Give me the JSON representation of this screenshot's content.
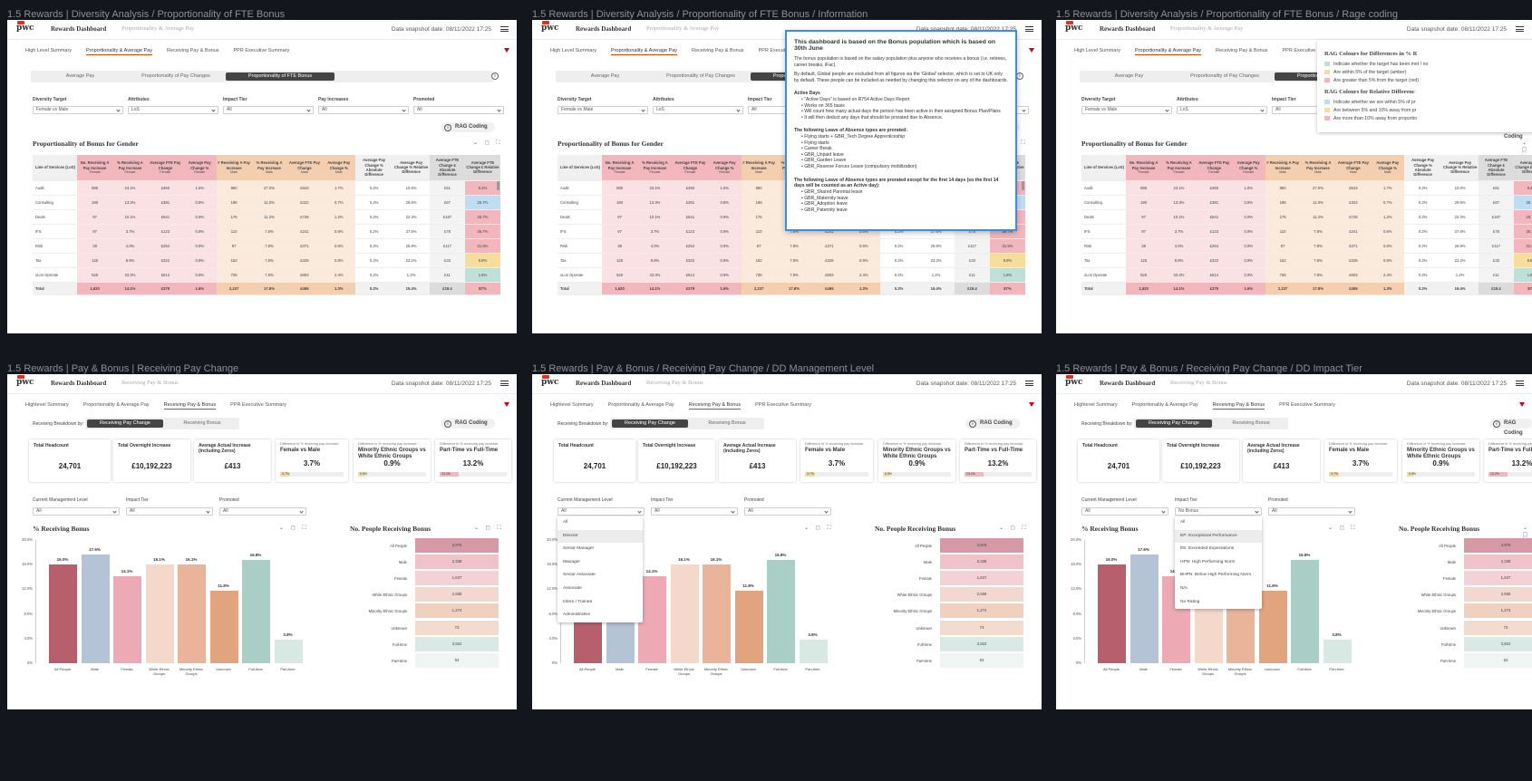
{
  "frames": {
    "f1": "1.5 Rewards | Diversity Analysis / Proportionality of FTE Bonus",
    "f2": "1.5 Rewards | Diversity Analysis / Proportionality of FTE Bonus / Information",
    "f3": "1.5 Rewards | Diversity Analysis / Proportionality of FTE Bonus / Rage coding",
    "f4": "1.5 Rewards | Pay & Bonus | Receiving Pay Change",
    "f5": "1.5 Rewards | Pay & Bonus / Receiving Pay Change / DD Management Level",
    "f6": "1.5 Rewards | Pay & Bonus / Receiving Pay Change / DD Impact Tier"
  },
  "header": {
    "logo": "pwc",
    "app": "Rewards Dashboard",
    "page_prop": "Proportionality & Average Pay",
    "page_recv": "Receiving Pay & Bonus",
    "snapshot": "Data snapshot date: 08/11/2022 17:25"
  },
  "nav_prop": [
    "High Level Summary",
    "Proportionality & Average Pay",
    "Receiving Pay & Bonus",
    "PPR Executive Summary"
  ],
  "nav_recv": [
    "Highlevel Summary",
    "Proportionality & Average Pay",
    "Receiving Pay & Bonus",
    "PPR Executive Summary"
  ],
  "subtabs": [
    "Average Pay",
    "Proportionality of Pay Changes",
    "Proportionality of FTE Bonus"
  ],
  "filters": {
    "diversity": {
      "label": "Diversity Target",
      "value": "Female vs Male"
    },
    "attributes": {
      "label": "Attributes",
      "value": "LoS"
    },
    "impact": {
      "label": "Impact Tier",
      "value": "All"
    },
    "payinc": {
      "label": "Pay Increases",
      "value": "All"
    },
    "promoted": {
      "label": "Promoted",
      "value": "All"
    }
  },
  "rag_label": "RAG Coding",
  "prop_title": "Proportionality of Bonus for Gender",
  "table": {
    "headers": [
      "Line of Services (LoS)",
      "No. Receiving A Pay Increase",
      "% Receiving A Pay Increase",
      "Average FTE Pay Change",
      "Average Pay Change %",
      "# Receiving A Pay Increase",
      "% Receiving A Pay Increase",
      "Average FTE Pay Change",
      "Average Pay Change %",
      "Average Pay Change % Absolute Difference",
      "Average Pay Change % Relative Difference",
      "Average FTE Change £ Absolute Difference",
      "Average FTE Change £ Relative Difference"
    ],
    "subs": [
      "",
      "Female",
      "Female",
      "Female",
      "Female",
      "Male",
      "Male",
      "Male",
      "Male",
      "",
      "",
      "",
      ""
    ],
    "rows": [
      [
        "Audit",
        "595",
        "23.1%",
        "£460",
        "1.5%",
        "860",
        "27.0%",
        "£543",
        "1.7%",
        "0.2%",
        "10.6%",
        "£51",
        "9.4%"
      ],
      [
        "Consulting",
        "190",
        "13.3%",
        "£381",
        "0.8%",
        "198",
        "11.0%",
        "£322",
        "0.7%",
        "0.2%",
        "29.6%",
        "£67",
        "25.7%"
      ],
      [
        "Deals",
        "97",
        "10.1%",
        "£541",
        "0.9%",
        "176",
        "11.2%",
        "£728",
        "1.2%",
        "0.2%",
        "22.3%",
        "£187",
        "25.7%"
      ],
      [
        "IFS",
        "97",
        "3.7%",
        "£123",
        "0.9%",
        "110",
        "7.8%",
        "£241",
        "0.6%",
        "0.2%",
        "37.6%",
        "£78",
        "36.7%"
      ],
      [
        "Risk",
        "38",
        "4.0%",
        "£254",
        "0.9%",
        "87",
        "7.8%",
        "£371",
        "0.6%",
        "0.2%",
        "26.8%",
        "£117",
        "31.5%"
      ],
      [
        "Tax",
        "125",
        "8.9%",
        "£322",
        "0.9%",
        "152",
        "7.8%",
        "£326",
        "0.8%",
        "0.2%",
        "23.2%",
        "£33",
        "9.8%"
      ],
      [
        "xLos Operate",
        "526",
        "33.3%",
        "£614",
        "0.9%",
        "736",
        "7.8%",
        "£603",
        "2.4%",
        "0.2%",
        "1.2%",
        "£11",
        "1.8%"
      ]
    ],
    "total": [
      "Total",
      "1,620",
      "14.1%",
      "£379",
      "1.6%",
      "2,237",
      "17.8%",
      "£465",
      "1.3%",
      "0.2%",
      "19.4%",
      "£19.4",
      "87%"
    ],
    "rag_colors": [
      "#f1b7bd",
      "#bfdcf3",
      "#f1b7bd",
      "#f1b7bd",
      "#f1b7bd",
      "#f6dd9b",
      "#bfe0d7"
    ]
  },
  "info": {
    "title": "This dashboard is based on the Bonus population which is based on 30th June",
    "p1": "The bonus population is based on the salary population plus anyone who receives a bonus (i.e. retirees, career breaks, iFac).",
    "p2": "By default, Global people are excluded from all figures via the 'Global' selector, which is set to UK only by default. These people can be included as needed by changing this selector on any of the dashboards.",
    "ad_title": "Active Days",
    "ad": [
      "\"Active Days\" is based on R754 Active Days Report",
      "Works on 365 basis",
      "Will count how many actual days the person has been active in their assigned Bonus Plan/Plans",
      "It will then deduct any days that should be prorated due to Absence."
    ],
    "la_title": "The following Leave of Absence types are prorated:",
    "la": [
      "Flying starts + GBR_Tech Degree Apprenticeship",
      "Flying starts",
      "Career Break",
      "GBR_Unpaid leave",
      "GBR_Garden Leave",
      "GBR_Reserve Forces Leave (compulsory mobilization)"
    ],
    "lb_title": "The following Leave of Absence types are prorated except for the first 14 days (so the first 14 days will be counted as an Active day):",
    "lb": [
      "GBR_Shared Parental leave",
      "GBR_Maternity leave",
      "GBR_Adoption leave",
      "GBR_Paternity leave"
    ]
  },
  "rag_panel": {
    "t1": "RAG Colours for Differences in % R",
    "l1": [
      "Indicate whether the target has been met / no",
      "Are within 5% of the target (amber)",
      "Are greater than 5% from the target (red)"
    ],
    "t2": "RAG Colours for Relative Differenc",
    "l2": [
      "Indicate whether we are within 5% of pr",
      "Are between 5% and 10% away from pr",
      "Are more than 10% away from proportio"
    ],
    "colors1": [
      "#bfe0d7",
      "#f6dd9b",
      "#f1b7bd"
    ],
    "colors2": [
      "#bfdcf3",
      "#f6dd9b",
      "#f1b7bd"
    ]
  },
  "recv": {
    "breakdown_label": "Receiving Breakdown by:",
    "toggle": [
      "Receiving Pay Change",
      "Receiving Bonus"
    ],
    "kpi": [
      {
        "label": "Total Headcount",
        "value": "24,701"
      },
      {
        "label": "Total Overnight Increase",
        "value": "£10,192,223"
      },
      {
        "label": "Average Actual Increase (including Zeros)",
        "value": "£413"
      }
    ],
    "kpi2": [
      {
        "small": "Difference in % receiving pay increase",
        "label": "Female vs Male",
        "value": "3.7%",
        "bar": "3.7%",
        "color": "#f6dd9b",
        "fill": 0.16
      },
      {
        "small": "Difference in % receiving pay increase",
        "label": "Minority Ethnic Groups vs White Ethnic Groups",
        "value": "0.9%",
        "bar": "0.9%",
        "color": "#f6dd9b",
        "fill": 0.1
      },
      {
        "small": "Difference in % receiving pay increase",
        "label": "Part-Time vs Full-Time",
        "value": "13.2%",
        "bar": "13.2%",
        "color": "#f1b7bd",
        "fill": 0.28
      }
    ],
    "kpi2_alt": [
      {
        "label": "Female vs Male",
        "value": "3.7%"
      },
      {
        "label": "Minority Ethnic Groups vs White Ethnic Groups",
        "value": "0.9%"
      },
      {
        "label": "Part-Time vs Full-Time",
        "value": "13.2%"
      }
    ],
    "f_mgmt": {
      "label": "Current Management Level",
      "value": "All"
    },
    "f_tier": {
      "label": "Impact Tier",
      "value": "All",
      "value_nb": "No Bonus"
    },
    "f_prom": {
      "label": "Promoted",
      "value": "All"
    },
    "bar_title": "% Receiving Bonus",
    "hbar_title": "No. People Receiving Bonus",
    "mgmt_options": [
      "All",
      "Director",
      "Senior Manager",
      "Manager",
      "Senior Associate",
      "Associate",
      "Intern / Trainee",
      "Administrative"
    ],
    "tier_options": [
      "All",
      "EP: Exceptional Performance",
      "EE: Exceeded Expectations",
      "HPN: High Performing Norm",
      "BHPN: Below High Performing Norm",
      "N/A",
      "No Rating"
    ]
  },
  "chart_data": [
    {
      "type": "bar",
      "title": "% Receiving Bonus",
      "categories": [
        "All People",
        "Male",
        "Female",
        "White Ethnic Groups",
        "Minority Ethnic Groups",
        "Unknown",
        "Full-time",
        "Part-time"
      ],
      "values": [
        16.0,
        17.6,
        14.1,
        16.1,
        16.1,
        11.8,
        16.8,
        3.8
      ],
      "labels": [
        "16.0%",
        "17.6%",
        "14.1%",
        "16.1%",
        "16.1%",
        "11.8%",
        "16.8%",
        "3.8%"
      ],
      "colors": [
        "#b85f6e",
        "#b5c3d6",
        "#eeaab4",
        "#f4d8c9",
        "#e9b49a",
        "#e2a47e",
        "#a8cec5",
        "#d8e9e4"
      ],
      "ylim": [
        0,
        20
      ],
      "yticks": [
        "20.0%",
        "16.0%",
        "12.0%",
        "8.0%",
        "4.0%",
        "0%"
      ]
    },
    {
      "type": "bar",
      "orientation": "horizontal",
      "title": "No. People Receiving Bonus",
      "categories": [
        "All People",
        "Male",
        "Female",
        "White Ethnic Groups",
        "Minority Ethnic Groups",
        "Unknown",
        "Full-time",
        "Part-time"
      ],
      "values": [
        3975,
        2338,
        1637,
        2658,
        1274,
        73,
        3922,
        53
      ],
      "labels": [
        "3,975",
        "2,338",
        "1,637",
        "2,658",
        "1,274",
        "73",
        "3,922",
        "53"
      ],
      "colors": [
        "#d69aa6",
        "#efc3c8",
        "#f4d1d5",
        "#f2d9cf",
        "#f0d0bf",
        "#f2dccd",
        "#dbe9e6",
        "#eef5f3"
      ]
    }
  ]
}
